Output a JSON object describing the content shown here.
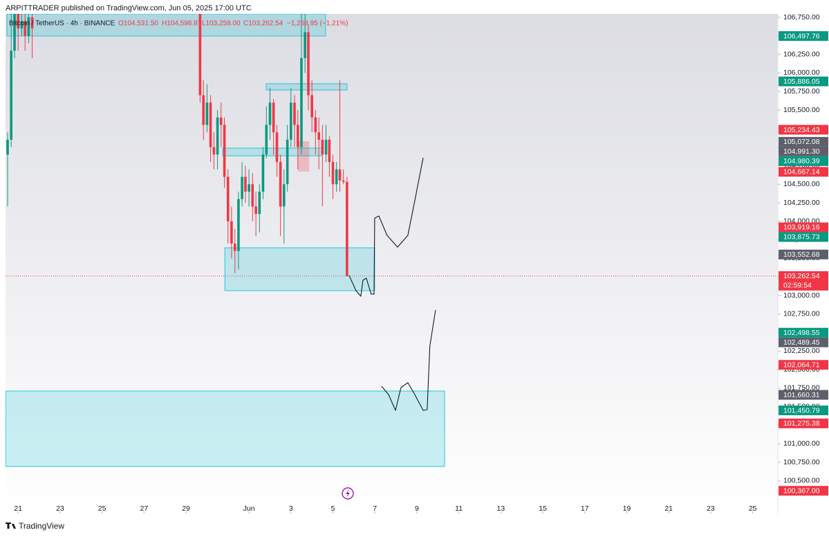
{
  "chart_data": {
    "type": "candlestick",
    "header": "ARPITTRADER published on TradingView.com, Jun 05, 2025 17:00 UTC",
    "legend": {
      "symbol": "Bitcoin / TetherUS · 4h · BINANCE",
      "open": "O104,531.50",
      "high": "H104,598.87",
      "low": "L103,258.00",
      "close": "C103,262.54",
      "change": "−1,268.95 (−1.21%)"
    },
    "brand": "TradingView",
    "up_color": "#089981",
    "down_color": "#f23645",
    "xlim": [
      -0.6,
      36.2
    ],
    "ylim": [
      100061,
      106797
    ],
    "xticks": [
      {
        "value": 0,
        "label": "21"
      },
      {
        "value": 2,
        "label": "23"
      },
      {
        "value": 4,
        "label": "25"
      },
      {
        "value": 6,
        "label": "27"
      },
      {
        "value": 8,
        "label": "29"
      },
      {
        "value": 11,
        "label": "Jun"
      },
      {
        "value": 13,
        "label": "3"
      },
      {
        "value": 15,
        "label": "5"
      },
      {
        "value": 17,
        "label": "7"
      },
      {
        "value": 19,
        "label": "9"
      },
      {
        "value": 21,
        "label": "11"
      },
      {
        "value": 23,
        "label": "13"
      },
      {
        "value": 25,
        "label": "15"
      },
      {
        "value": 27,
        "label": "17"
      },
      {
        "value": 29,
        "label": "19"
      },
      {
        "value": 31,
        "label": "21"
      },
      {
        "value": 33,
        "label": "23"
      },
      {
        "value": 35,
        "label": "25"
      }
    ],
    "yticks": [
      {
        "value": 106750,
        "label": "106,750.00"
      },
      {
        "value": 106500,
        "label": "106,500.00"
      },
      {
        "value": 106250,
        "label": "106,250.00"
      },
      {
        "value": 106000,
        "label": "106,000.00"
      },
      {
        "value": 105750,
        "label": "105,750.00"
      },
      {
        "value": 105500,
        "label": "105,500.00"
      },
      {
        "value": 105250,
        "label": "105,250.00"
      },
      {
        "value": 105000,
        "label": "105,000.00"
      },
      {
        "value": 104750,
        "label": "104,750.00"
      },
      {
        "value": 104500,
        "label": "104,500.00"
      },
      {
        "value": 104250,
        "label": "104,250.00"
      },
      {
        "value": 104000,
        "label": "104,000.00"
      },
      {
        "value": 103750,
        "label": "103,750.00"
      },
      {
        "value": 103500,
        "label": "103,500.00"
      },
      {
        "value": 103250,
        "label": "103,250.00"
      },
      {
        "value": 103000,
        "label": "103,000.00"
      },
      {
        "value": 102750,
        "label": "102,750.00"
      },
      {
        "value": 102500,
        "label": "102,500.00"
      },
      {
        "value": 102250,
        "label": "102,250.00"
      },
      {
        "value": 102000,
        "label": "102,000.00"
      },
      {
        "value": 101750,
        "label": "101,750.00"
      },
      {
        "value": 101500,
        "label": "101,500.00"
      },
      {
        "value": 101250,
        "label": "101,250.00"
      },
      {
        "value": 101000,
        "label": "101,000.00"
      },
      {
        "value": 100750,
        "label": "100,750.00"
      },
      {
        "value": 100500,
        "label": "100,500.00"
      }
    ],
    "candles": {
      "x": [
        -0.5,
        -0.33,
        -0.17,
        0,
        0.17,
        0.33,
        0.5,
        0.67,
        8.67,
        8.83,
        9,
        9.17,
        9.33,
        9.5,
        9.67,
        9.83,
        10,
        10.17,
        10.33,
        10.5,
        10.67,
        10.83,
        11,
        11.17,
        11.33,
        11.5,
        11.67,
        11.83,
        12,
        12.17,
        12.33,
        12.5,
        12.67,
        12.83,
        13,
        13.17,
        13.33,
        13.5,
        13.67,
        13.83,
        14,
        14.17,
        14.33,
        14.5,
        14.67,
        14.83,
        15,
        15.17,
        15.33,
        15.5,
        15.67
      ],
      "open": [
        104900,
        105100,
        106300,
        106800,
        106600,
        106700,
        106500,
        106750,
        106900,
        105700,
        105300,
        105600,
        105000,
        104900,
        105400,
        105300,
        104600,
        104000,
        103700,
        103600,
        104300,
        104600,
        104400,
        104500,
        104200,
        104100,
        104400,
        104900,
        105300,
        105600,
        105200,
        104800,
        104200,
        104500,
        105100,
        105600,
        105300,
        105000,
        106200,
        106550,
        105700,
        105400,
        105200,
        105100,
        104900,
        105100,
        104800,
        104500,
        104700,
        104550,
        104531.5
      ],
      "high": [
        105200,
        106900,
        107000,
        106900,
        106950,
        106800,
        107000,
        106900,
        106950,
        105900,
        105850,
        105700,
        105200,
        105500,
        105600,
        105400,
        104700,
        104200,
        103900,
        104400,
        104800,
        104750,
        104700,
        104650,
        104400,
        104500,
        105000,
        105550,
        105800,
        105650,
        105300,
        104900,
        104700,
        105300,
        105800,
        105700,
        105500,
        106800,
        106900,
        106650,
        105900,
        105500,
        105400,
        105300,
        105300,
        105150,
        104900,
        104800,
        105900,
        104700,
        104598.87
      ],
      "low": [
        104200,
        105000,
        106200,
        106300,
        106500,
        106300,
        106400,
        106200,
        105600,
        105100,
        105200,
        104800,
        104700,
        104700,
        105000,
        104450,
        103700,
        103500,
        103300,
        103350,
        104200,
        104250,
        104200,
        104000,
        103800,
        103850,
        104300,
        104850,
        105100,
        104900,
        104600,
        103800,
        103700,
        104400,
        105000,
        105000,
        104700,
        104900,
        106000,
        105500,
        105200,
        104900,
        104700,
        104200,
        104800,
        104600,
        104300,
        104400,
        104400,
        104500,
        103258
      ],
      "close": [
        105100,
        106300,
        106800,
        106600,
        106700,
        106500,
        106750,
        106600,
        105700,
        105300,
        105600,
        105000,
        104900,
        105400,
        105300,
        104600,
        104000,
        103700,
        103600,
        104300,
        104600,
        104400,
        104500,
        104200,
        104100,
        104400,
        104900,
        105300,
        105600,
        105200,
        104800,
        104200,
        104500,
        105100,
        105600,
        105300,
        105000,
        106200,
        106550,
        105700,
        105400,
        105200,
        105100,
        104900,
        105100,
        104800,
        104500,
        104700,
        104550,
        104531.5,
        103262.54
      ]
    },
    "zones": [
      {
        "x": [
          -0.53,
          14.65
        ],
        "y": [
          106498,
          106797
        ],
        "color": "rgba(0,188,212,0.2)",
        "border": "#26c6da"
      },
      {
        "x": [
          11.82,
          15.67
        ],
        "y": [
          105770,
          105855
        ],
        "color": "rgba(0,188,212,0.2)",
        "border": "#26c6da"
      },
      {
        "x": [
          9.75,
          14.49
        ],
        "y": [
          104883,
          104987
        ],
        "color": "rgba(0,188,212,0.2)",
        "border": "#26c6da"
      },
      {
        "x": [
          13.33,
          13.87
        ],
        "y": [
          104670,
          105080
        ],
        "color": "rgba(242,54,69,0.25)",
        "border": "rgba(242,54,69,0)"
      },
      {
        "x": [
          9.85,
          16.99
        ],
        "y": [
          103065,
          103643
        ],
        "color": "rgba(0,188,212,0.2)",
        "border": "#26c6da"
      },
      {
        "x": [
          -0.59,
          20.32
        ],
        "y": [
          100695,
          101712
        ],
        "color": "rgba(0,188,212,0.2)",
        "border": "#26c6da"
      }
    ],
    "drawings": [
      {
        "x": [
          15.77,
          16.1,
          16.33,
          16.43,
          16.59,
          16.82,
          16.96,
          16.99,
          17.19,
          17.58,
          18.08,
          18.57,
          18.9,
          19.3
        ],
        "y": [
          103270,
          103065,
          102990,
          103205,
          103233,
          103018,
          103018,
          104044,
          104072,
          103811,
          103652,
          103811,
          104277,
          104856
        ],
        "color": "#131722"
      },
      {
        "x": [
          17.32,
          17.65,
          17.98,
          18.24,
          18.57,
          18.9,
          19.3,
          19.49,
          19.62,
          19.89
        ],
        "y": [
          101777,
          101665,
          101451,
          101758,
          101824,
          101665,
          101451,
          101460,
          102318,
          102803
        ],
        "color": "#131722"
      }
    ],
    "last_price": {
      "value": 103262.54,
      "label": "103,262.54",
      "countdown": "02:59:54",
      "color": "#f23645"
    },
    "price_labels": [
      {
        "value": 106497.76,
        "label": "106,497.76",
        "color": "#089981"
      },
      {
        "value": 105886.05,
        "label": "105,886.05",
        "color": "#089981"
      },
      {
        "value": 105234.43,
        "label": "105,234.43",
        "color": "#f23645"
      },
      {
        "value": 105072.08,
        "label": "105,072.08",
        "color": "#5d606b"
      },
      {
        "value": 104991.3,
        "label": "104,991.30",
        "color": "#5d606b"
      },
      {
        "value": 104980.39,
        "label": "104,980.39",
        "color": "#089981"
      },
      {
        "value": 104667.14,
        "label": "104,667.14",
        "color": "#f23645"
      },
      {
        "value": 103919.16,
        "label": "103,919.16",
        "color": "#f23645"
      },
      {
        "value": 103875.73,
        "label": "103,875.73",
        "color": "#089981"
      },
      {
        "value": 103552.68,
        "label": "103,552.68",
        "color": "#5d606b"
      },
      {
        "value": 102498.55,
        "label": "102,498.55",
        "color": "#089981"
      },
      {
        "value": 102489.45,
        "label": "102,489.45",
        "color": "#5d606b"
      },
      {
        "value": 102064.71,
        "label": "102,064.71",
        "color": "#f23645"
      },
      {
        "value": 101660.31,
        "label": "101,660.31",
        "color": "#5d606b"
      },
      {
        "value": 101450.79,
        "label": "101,450.79",
        "color": "#089981"
      },
      {
        "value": 101275.38,
        "label": "101,275.38",
        "color": "#f23645"
      },
      {
        "value": 100367.0,
        "label": "100,367.00",
        "color": "#f23645"
      }
    ]
  }
}
